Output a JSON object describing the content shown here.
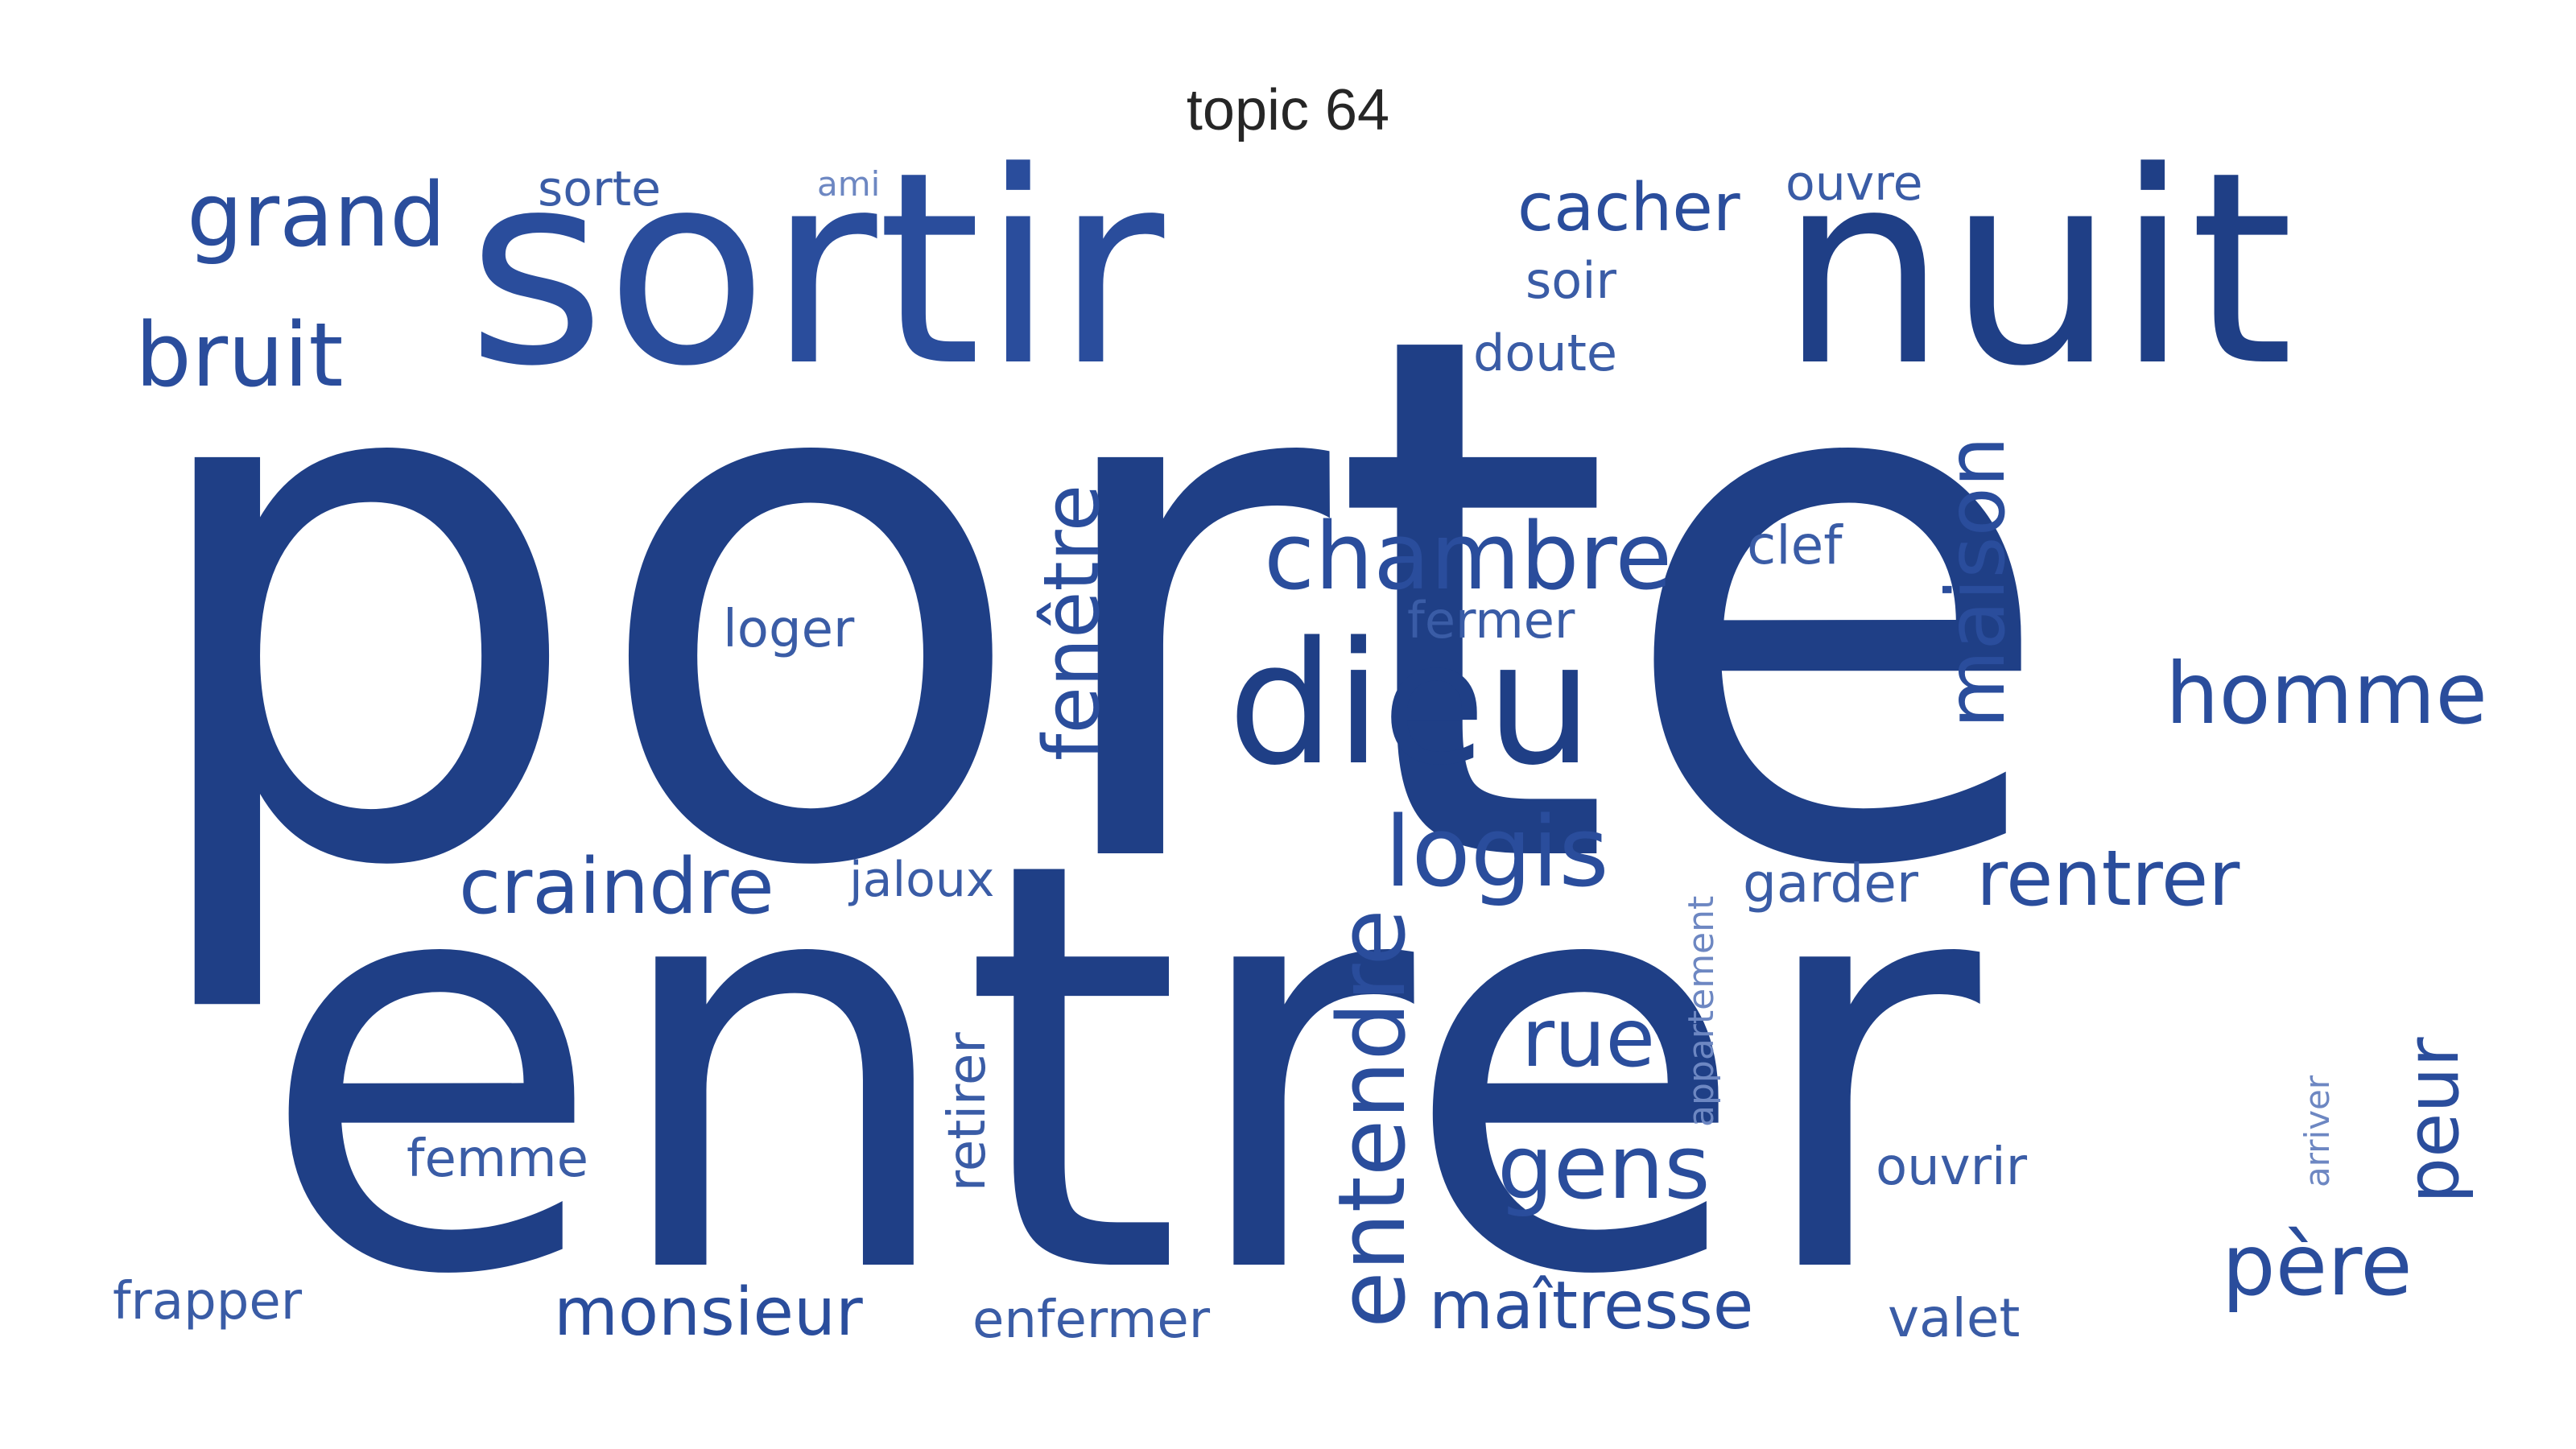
{
  "title": "topic 64",
  "colors": {
    "primary": "#1f3f86",
    "secondary": "#274c9a",
    "light": "#4a6cb0"
  },
  "words": [
    {
      "text": "porte"
    },
    {
      "text": "entrer"
    },
    {
      "text": "sortir"
    },
    {
      "text": "nuit"
    },
    {
      "text": "dieu"
    },
    {
      "text": "chambre"
    },
    {
      "text": "entendre"
    },
    {
      "text": "logis"
    },
    {
      "text": "maison"
    },
    {
      "text": "homme"
    },
    {
      "text": "fenêtre"
    },
    {
      "text": "grand"
    },
    {
      "text": "bruit"
    },
    {
      "text": "craindre"
    },
    {
      "text": "rentrer"
    },
    {
      "text": "gens"
    },
    {
      "text": "rue"
    },
    {
      "text": "père"
    },
    {
      "text": "peur"
    },
    {
      "text": "monsieur"
    },
    {
      "text": "maîtresse"
    },
    {
      "text": "cacher"
    },
    {
      "text": "valet"
    },
    {
      "text": "enfermer"
    },
    {
      "text": "frapper"
    },
    {
      "text": "garder"
    },
    {
      "text": "ouvrir"
    },
    {
      "text": "retirer"
    },
    {
      "text": "femme"
    },
    {
      "text": "loger"
    },
    {
      "text": "fermer"
    },
    {
      "text": "clef"
    },
    {
      "text": "jaloux"
    },
    {
      "text": "doute"
    },
    {
      "text": "soir"
    },
    {
      "text": "sorte"
    },
    {
      "text": "ouvre"
    },
    {
      "text": "appartement"
    },
    {
      "text": "arriver"
    },
    {
      "text": "ami"
    }
  ]
}
